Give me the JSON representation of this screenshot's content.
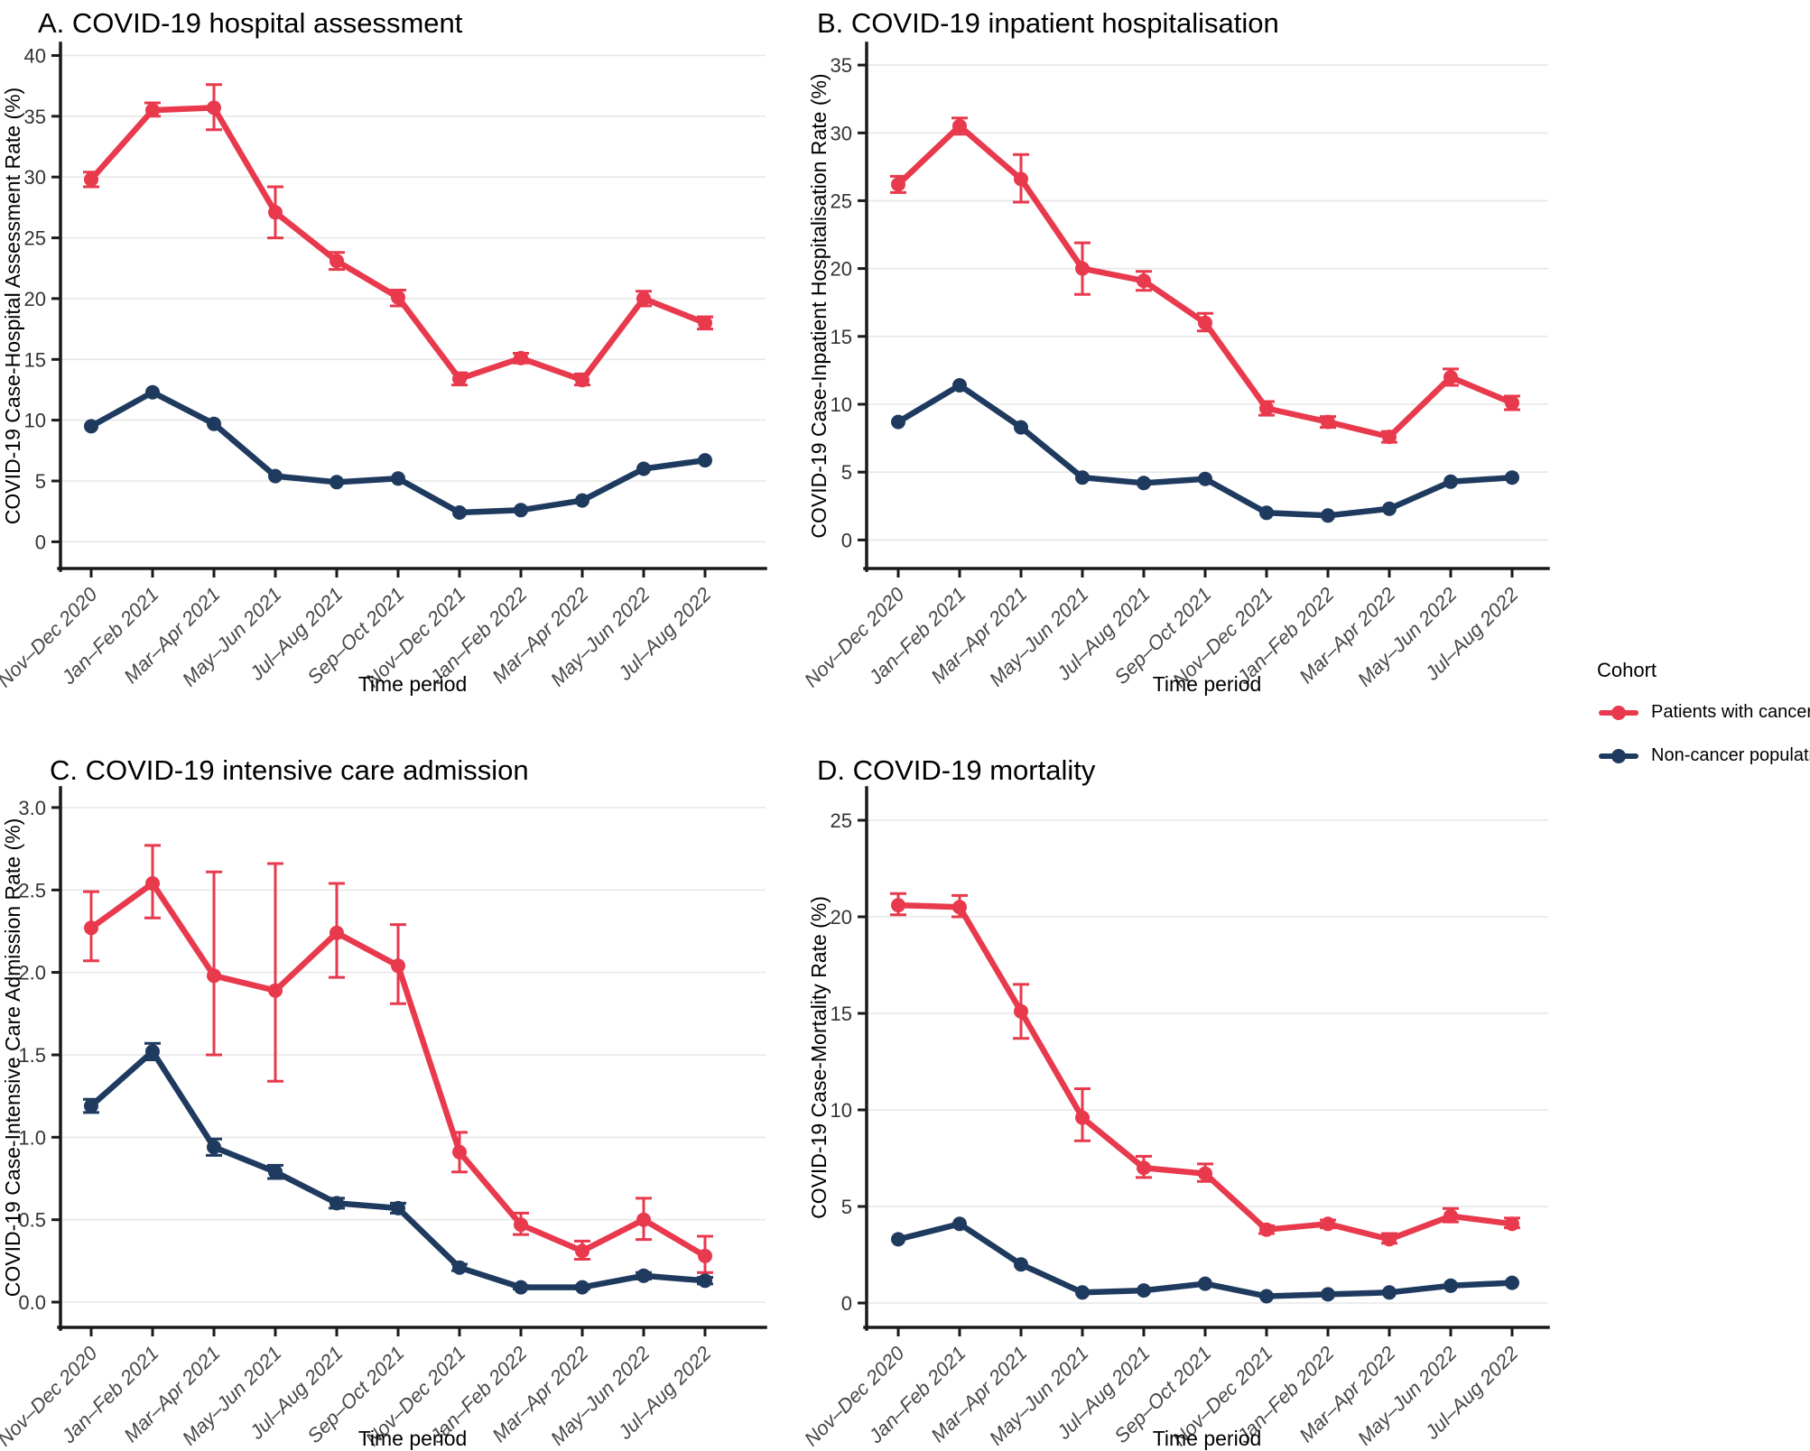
{
  "legend": {
    "title": "Cohort",
    "items": [
      {
        "label": "Patients with cancer",
        "color": "#e8394d"
      },
      {
        "label": "Non-cancer population",
        "color": "#1f3a5f"
      }
    ]
  },
  "x_axis": {
    "label": "Time period",
    "categories": [
      "Nov–Dec 2020",
      "Jan–Feb 2021",
      "Mar–Apr 2021",
      "May–Jun 2021",
      "Jul–Aug 2021",
      "Sep–Oct 2021",
      "Nov–Dec 2021",
      "Jan–Feb 2022",
      "Mar–Apr 2022",
      "May–Jun 2022",
      "Jul–Aug 2022"
    ],
    "grid": "horizontal-only"
  },
  "style": {
    "grid_color": "#e7e7e7",
    "axis_color": "#1a1a1a",
    "tick_color": "#1a1a1a",
    "background": "#ffffff"
  },
  "chart_data": [
    {
      "type": "line",
      "title": "A. COVID-19 hospital assessment",
      "ylabel": "COVID-19 Case-Hospital Assessment Rate (%)",
      "xlabel": "Time period",
      "ylim": [
        -2.2,
        41.0
      ],
      "yticks": [
        0,
        5,
        10,
        15,
        20,
        25,
        30,
        35,
        40
      ],
      "ytick_labels": [
        "0",
        "5",
        "10",
        "15",
        "20",
        "25",
        "30",
        "35",
        "40"
      ],
      "series": [
        {
          "name": "Patients with cancer",
          "color": "#e8394d",
          "values": [
            29.8,
            35.5,
            35.7,
            27.1,
            23.1,
            20.1,
            13.4,
            15.1,
            13.3,
            20.0,
            18.0
          ],
          "ci_low": [
            29.2,
            35.0,
            33.9,
            25.0,
            22.4,
            19.4,
            12.9,
            14.7,
            12.9,
            19.4,
            17.5
          ],
          "ci_high": [
            30.4,
            36.1,
            37.6,
            29.2,
            23.8,
            20.7,
            13.9,
            15.5,
            13.8,
            20.6,
            18.5
          ]
        },
        {
          "name": "Non-cancer population",
          "color": "#1f3a5f",
          "values": [
            9.5,
            12.3,
            9.7,
            5.4,
            4.9,
            5.2,
            2.4,
            2.6,
            3.4,
            6.0,
            6.7
          ]
        }
      ]
    },
    {
      "type": "line",
      "title": "B. COVID-19 inpatient hospitalisation",
      "ylabel": "COVID-19 Case-Inpatient Hospitalisation Rate (%)",
      "xlabel": "Time period",
      "ylim": [
        -2.1,
        36.6
      ],
      "yticks": [
        0,
        5,
        10,
        15,
        20,
        25,
        30,
        35
      ],
      "ytick_labels": [
        "0",
        "5",
        "10",
        "15",
        "20",
        "25",
        "30",
        "35"
      ],
      "series": [
        {
          "name": "Patients with cancer",
          "color": "#e8394d",
          "values": [
            26.2,
            30.5,
            26.6,
            20.0,
            19.1,
            16.0,
            9.7,
            8.7,
            7.6,
            12.0,
            10.1
          ],
          "ci_low": [
            25.6,
            29.9,
            24.9,
            18.1,
            18.4,
            15.4,
            9.2,
            8.3,
            7.2,
            11.4,
            9.6
          ],
          "ci_high": [
            26.8,
            31.1,
            28.4,
            21.9,
            19.8,
            16.7,
            10.2,
            9.1,
            8.0,
            12.6,
            10.6
          ]
        },
        {
          "name": "Non-cancer population",
          "color": "#1f3a5f",
          "values": [
            8.7,
            11.4,
            8.3,
            4.6,
            4.2,
            4.5,
            2.0,
            1.8,
            2.3,
            4.3,
            4.6
          ]
        }
      ]
    },
    {
      "type": "line",
      "title": "C. COVID-19 intensive care admission",
      "ylabel": "COVID-19 Case-Intensive Care Admission Rate (%)",
      "xlabel": "Time period",
      "ylim": [
        -0.153,
        3.12
      ],
      "yticks": [
        0,
        0.5,
        1.0,
        1.5,
        2.0,
        2.5,
        3.0
      ],
      "ytick_labels": [
        "0.0",
        "0.5",
        "1.0",
        "1.5",
        "2.0",
        "2.5",
        "3.0"
      ],
      "series": [
        {
          "name": "Patients with cancer",
          "color": "#e8394d",
          "values": [
            2.27,
            2.54,
            1.98,
            1.89,
            2.24,
            2.04,
            0.91,
            0.47,
            0.31,
            0.5,
            0.28
          ],
          "ci_low": [
            2.07,
            2.33,
            1.5,
            1.34,
            1.97,
            1.81,
            0.79,
            0.41,
            0.26,
            0.38,
            0.18
          ],
          "ci_high": [
            2.49,
            2.77,
            2.61,
            2.66,
            2.54,
            2.29,
            1.03,
            0.54,
            0.37,
            0.63,
            0.4
          ]
        },
        {
          "name": "Non-cancer population",
          "color": "#1f3a5f",
          "values": [
            1.19,
            1.52,
            0.94,
            0.79,
            0.6,
            0.57,
            0.21,
            0.09,
            0.09,
            0.16,
            0.13
          ],
          "ci_low": [
            1.15,
            1.47,
            0.89,
            0.75,
            0.57,
            0.54,
            0.19,
            0.08,
            0.08,
            0.14,
            0.11
          ],
          "ci_high": [
            1.23,
            1.57,
            0.99,
            0.83,
            0.63,
            0.6,
            0.23,
            0.1,
            0.1,
            0.18,
            0.15
          ]
        }
      ]
    },
    {
      "type": "line",
      "title": "D. COVID-19 mortality",
      "ylabel": "COVID-19 Case-Mortality Rate (%)",
      "xlabel": "Time period",
      "ylim": [
        -1.26,
        26.68
      ],
      "yticks": [
        0,
        5,
        10,
        15,
        20,
        25
      ],
      "ytick_labels": [
        "0",
        "5",
        "10",
        "15",
        "20",
        "25"
      ],
      "series": [
        {
          "name": "Patients with cancer",
          "color": "#e8394d",
          "values": [
            20.6,
            20.5,
            15.1,
            9.6,
            7.0,
            6.7,
            3.8,
            4.1,
            3.3,
            4.5,
            4.1
          ],
          "ci_low": [
            20.1,
            20.0,
            13.7,
            8.4,
            6.5,
            6.3,
            3.6,
            3.9,
            3.1,
            4.2,
            3.9
          ],
          "ci_high": [
            21.2,
            21.1,
            16.5,
            11.1,
            7.6,
            7.2,
            4.0,
            4.3,
            3.6,
            4.9,
            4.4
          ]
        },
        {
          "name": "Non-cancer population",
          "color": "#1f3a5f",
          "values": [
            3.3,
            4.1,
            2.0,
            0.55,
            0.65,
            1.0,
            0.35,
            0.45,
            0.55,
            0.9,
            1.05
          ]
        }
      ]
    }
  ]
}
